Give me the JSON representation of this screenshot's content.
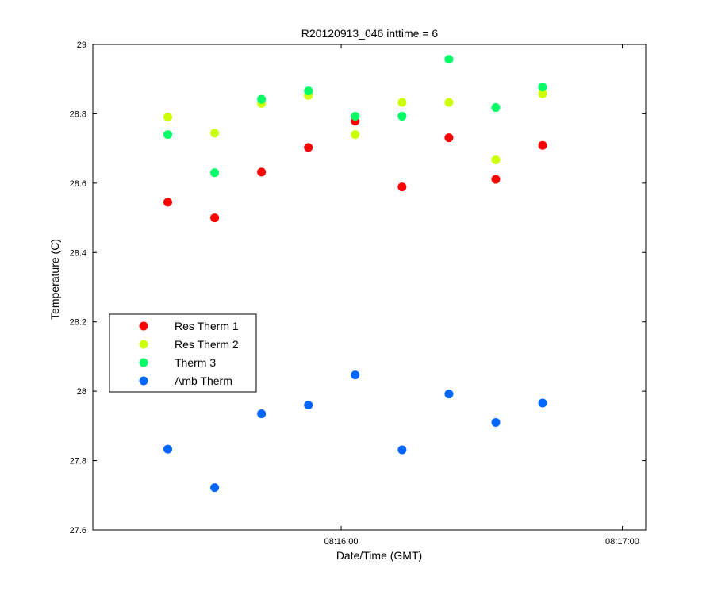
{
  "chart_data": {
    "type": "scatter",
    "title": "R20120913_046 inttime = 6",
    "xlabel": "Date/Time (GMT)",
    "ylabel": "Temperature (C)",
    "xlim": [
      "08:15:07",
      "08:17:05"
    ],
    "ylim": [
      27.6,
      29
    ],
    "x_ticks": [
      "08:16:00",
      "08:17:00"
    ],
    "y_ticks": [
      27.6,
      27.8,
      28,
      28.2,
      28.4,
      28.6,
      28.8,
      29
    ],
    "grid": false,
    "legend_position": "middle-left",
    "x": [
      "08:15:23",
      "08:15:33",
      "08:15:43",
      "08:15:53",
      "08:16:03",
      "08:16:13",
      "08:16:23",
      "08:16:33",
      "08:16:43"
    ],
    "series": [
      {
        "name": "Res Therm 1",
        "color": "#ff0000",
        "x": [
          "08:15:23",
          "08:15:33",
          "08:15:43",
          "08:15:53",
          "08:16:03",
          "08:16:13",
          "08:16:23",
          "08:16:33",
          "08:16:43"
        ],
        "values": [
          28.545,
          28.5,
          28.632,
          28.703,
          28.779,
          28.589,
          28.731,
          28.611,
          28.709
        ]
      },
      {
        "name": "Res Therm 2",
        "color": "#ccff00",
        "x": [
          "08:15:23",
          "08:15:33",
          "08:15:43",
          "08:15:53",
          "08:16:03",
          "08:16:13",
          "08:16:23",
          "08:16:33",
          "08:16:43"
        ],
        "values": [
          28.791,
          28.744,
          28.83,
          28.853,
          28.74,
          28.833,
          28.833,
          28.667,
          28.858
        ]
      },
      {
        "name": "Therm 3",
        "color": "#00ff66",
        "x": [
          "08:15:23",
          "08:15:33",
          "08:15:43",
          "08:15:53",
          "08:16:03",
          "08:16:13",
          "08:16:23",
          "08:16:33",
          "08:16:43"
        ],
        "values": [
          28.74,
          28.63,
          28.842,
          28.866,
          28.793,
          28.793,
          28.957,
          28.818,
          28.877
        ]
      },
      {
        "name": "Amb Therm",
        "color": "#0066ff",
        "x": [
          "08:15:23",
          "08:15:33",
          "08:15:43",
          "08:15:53",
          "08:16:03",
          "08:16:13",
          "08:16:23",
          "08:16:33",
          "08:16:43"
        ],
        "values": [
          27.833,
          27.722,
          27.935,
          27.96,
          28.047,
          27.831,
          27.992,
          27.91,
          27.966
        ]
      }
    ]
  }
}
